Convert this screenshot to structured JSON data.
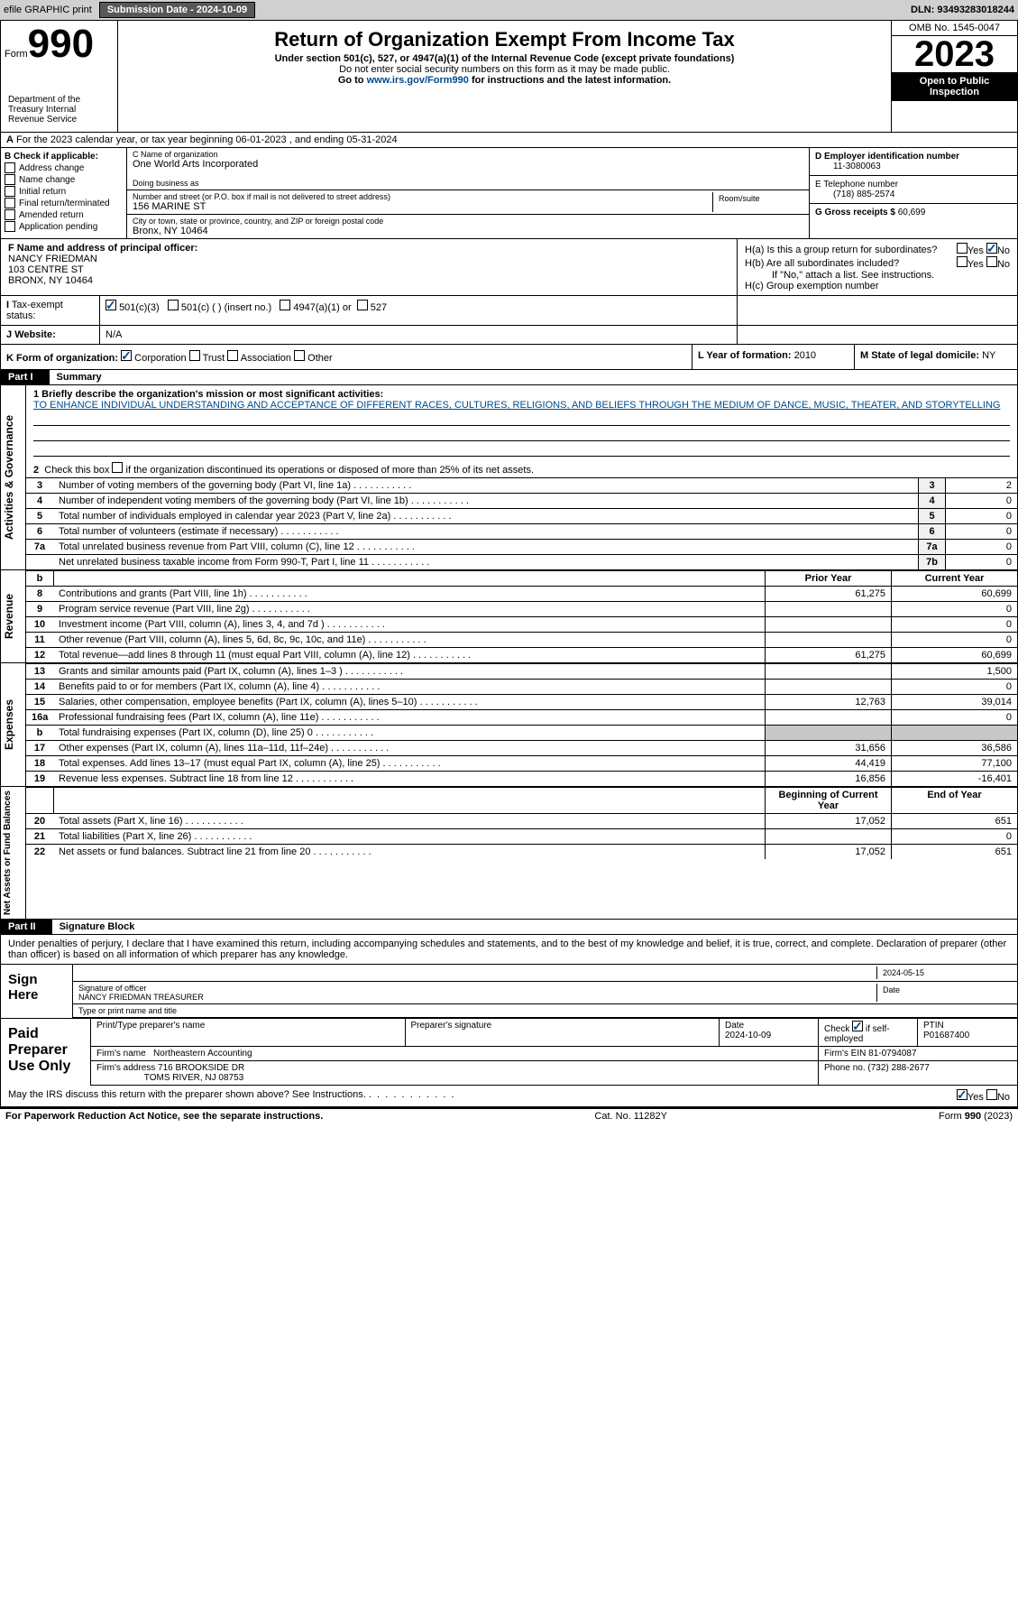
{
  "topbar": {
    "efile": "efile GRAPHIC print",
    "submission": "Submission Date - 2024-10-09",
    "dln": "DLN: 93493283018244"
  },
  "header": {
    "form_label": "Form",
    "form_num": "990",
    "dept": "Department of the Treasury Internal Revenue Service",
    "title": "Return of Organization Exempt From Income Tax",
    "sub": "Under section 501(c), 527, or 4947(a)(1) of the Internal Revenue Code (except private foundations)",
    "sub2": "Do not enter social security numbers on this form as it may be made public.",
    "sub3": "Go to www.irs.gov/Form990 for instructions and the latest information.",
    "omb": "OMB No. 1545-0047",
    "year": "2023",
    "inspect": "Open to Public Inspection"
  },
  "row_a": "For the 2023 calendar year, or tax year beginning 06-01-2023   , and ending 05-31-2024",
  "box_b": {
    "title": "B Check if applicable:",
    "opts": [
      "Address change",
      "Name change",
      "Initial return",
      "Final return/terminated",
      "Amended return",
      "Application pending"
    ]
  },
  "box_c": {
    "name_lab": "C Name of organization",
    "name": "One World Arts Incorporated",
    "dba_lab": "Doing business as",
    "street_lab": "Number and street (or P.O. box if mail is not delivered to street address)",
    "street": "156 MARINE ST",
    "room_lab": "Room/suite",
    "city_lab": "City or town, state or province, country, and ZIP or foreign postal code",
    "city": "Bronx, NY  10464"
  },
  "box_d": {
    "ein_lab": "D Employer identification number",
    "ein": "11-3080063",
    "tel_lab": "E Telephone number",
    "tel": "(718) 885-2574",
    "gross_lab": "G Gross receipts $",
    "gross": "60,699"
  },
  "box_f": {
    "lab": "F  Name and address of principal officer:",
    "name": "NANCY FRIEDMAN",
    "addr1": "103 CENTRE ST",
    "addr2": "BRONX, NY  10464"
  },
  "box_h": {
    "ha": "H(a)  Is this a group return for subordinates?",
    "hb": "H(b)  Are all subordinates included?",
    "hnote": "If \"No,\" attach a list. See instructions.",
    "hc": "H(c)  Group exemption number"
  },
  "box_i": {
    "lab": "Tax-exempt status:",
    "c3": "501(c)(3)",
    "c": "501(c) (  ) (insert no.)",
    "a1": "4947(a)(1) or",
    "527": "527"
  },
  "box_j": {
    "lab": "Website:",
    "val": "N/A"
  },
  "box_k": {
    "lab": "K Form of organization:",
    "corp": "Corporation",
    "trust": "Trust",
    "assoc": "Association",
    "other": "Other"
  },
  "box_l": {
    "lab": "L Year of formation:",
    "val": "2010"
  },
  "box_m": {
    "lab": "M State of legal domicile:",
    "val": "NY"
  },
  "part1": {
    "lab": "Part I",
    "title": "Summary"
  },
  "mission": {
    "lab": "1  Briefly describe the organization's mission or most significant activities:",
    "text": "TO ENHANCE INDIVIDUAL UNDERSTANDING AND ACCEPTANCE OF DIFFERENT RACES, CULTURES, RELIGIONS, AND BELIEFS THROUGH THE MEDIUM OF DANCE, MUSIC, THEATER, AND STORYTELLING"
  },
  "line2": "Check this box        if the organization discontinued its operations or disposed of more than 25% of its net assets.",
  "side_labels": {
    "gov": "Activities & Governance",
    "rev": "Revenue",
    "exp": "Expenses",
    "net": "Net Assets or Fund Balances"
  },
  "gov_rows": [
    {
      "n": "3",
      "t": "Number of voting members of the governing body (Part VI, line 1a)",
      "nr": "3",
      "v": "2"
    },
    {
      "n": "4",
      "t": "Number of independent voting members of the governing body (Part VI, line 1b)",
      "nr": "4",
      "v": "0"
    },
    {
      "n": "5",
      "t": "Total number of individuals employed in calendar year 2023 (Part V, line 2a)",
      "nr": "5",
      "v": "0"
    },
    {
      "n": "6",
      "t": "Total number of volunteers (estimate if necessary)",
      "nr": "6",
      "v": "0"
    },
    {
      "n": "7a",
      "t": "Total unrelated business revenue from Part VIII, column (C), line 12",
      "nr": "7a",
      "v": "0"
    },
    {
      "n": "",
      "t": "Net unrelated business taxable income from Form 990-T, Part I, line 11",
      "nr": "7b",
      "v": "0"
    }
  ],
  "rev_hdr": {
    "b": "b",
    "prior": "Prior Year",
    "curr": "Current Year"
  },
  "rev_rows": [
    {
      "n": "8",
      "t": "Contributions and grants (Part VIII, line 1h)",
      "c1": "61,275",
      "c2": "60,699"
    },
    {
      "n": "9",
      "t": "Program service revenue (Part VIII, line 2g)",
      "c1": "",
      "c2": "0"
    },
    {
      "n": "10",
      "t": "Investment income (Part VIII, column (A), lines 3, 4, and 7d )",
      "c1": "",
      "c2": "0"
    },
    {
      "n": "11",
      "t": "Other revenue (Part VIII, column (A), lines 5, 6d, 8c, 9c, 10c, and 11e)",
      "c1": "",
      "c2": "0"
    },
    {
      "n": "12",
      "t": "Total revenue—add lines 8 through 11 (must equal Part VIII, column (A), line 12)",
      "c1": "61,275",
      "c2": "60,699"
    }
  ],
  "exp_rows": [
    {
      "n": "13",
      "t": "Grants and similar amounts paid (Part IX, column (A), lines 1–3 )",
      "c1": "",
      "c2": "1,500"
    },
    {
      "n": "14",
      "t": "Benefits paid to or for members (Part IX, column (A), line 4)",
      "c1": "",
      "c2": "0"
    },
    {
      "n": "15",
      "t": "Salaries, other compensation, employee benefits (Part IX, column (A), lines 5–10)",
      "c1": "12,763",
      "c2": "39,014"
    },
    {
      "n": "16a",
      "t": "Professional fundraising fees (Part IX, column (A), line 11e)",
      "c1": "",
      "c2": "0"
    },
    {
      "n": "b",
      "t": "Total fundraising expenses (Part IX, column (D), line 25) 0",
      "c1": "grey",
      "c2": "grey"
    },
    {
      "n": "17",
      "t": "Other expenses (Part IX, column (A), lines 11a–11d, 11f–24e)",
      "c1": "31,656",
      "c2": "36,586"
    },
    {
      "n": "18",
      "t": "Total expenses. Add lines 13–17 (must equal Part IX, column (A), line 25)",
      "c1": "44,419",
      "c2": "77,100"
    },
    {
      "n": "19",
      "t": "Revenue less expenses. Subtract line 18 from line 12",
      "c1": "16,856",
      "c2": "-16,401"
    }
  ],
  "net_hdr": {
    "prior": "Beginning of Current Year",
    "curr": "End of Year"
  },
  "net_rows": [
    {
      "n": "20",
      "t": "Total assets (Part X, line 16)",
      "c1": "17,052",
      "c2": "651"
    },
    {
      "n": "21",
      "t": "Total liabilities (Part X, line 26)",
      "c1": "",
      "c2": "0"
    },
    {
      "n": "22",
      "t": "Net assets or fund balances. Subtract line 21 from line 20",
      "c1": "17,052",
      "c2": "651"
    }
  ],
  "part2": {
    "lab": "Part II",
    "title": "Signature Block"
  },
  "sig": {
    "text": "Under penalties of perjury, I declare that I have examined this return, including accompanying schedules and statements, and to the best of my knowledge and belief, it is true, correct, and complete. Declaration of preparer (other than officer) is based on all information of which preparer has any knowledge.",
    "sign_here": "Sign Here",
    "date": "2024-05-15",
    "sig_lab": "Signature of officer",
    "date_lab": "Date",
    "name": "NANCY FRIEDMAN  TREASURER",
    "name_lab": "Type or print name and title"
  },
  "paid": {
    "lab": "Paid Preparer Use Only",
    "p_name_lab": "Print/Type preparer's name",
    "p_sig_lab": "Preparer's signature",
    "p_date_lab": "Date",
    "p_date": "2024-10-09",
    "check_lab": "Check        if self-employed",
    "ptin_lab": "PTIN",
    "ptin": "P01687400",
    "firm_name_lab": "Firm's name",
    "firm_name": "Northeastern Accounting",
    "firm_ein_lab": "Firm's EIN",
    "firm_ein": "81-0794087",
    "firm_addr_lab": "Firm's address",
    "firm_addr1": "716 BROOKSIDE DR",
    "firm_addr2": "TOMS RIVER, NJ  08753",
    "phone_lab": "Phone no.",
    "phone": "(732) 288-2677"
  },
  "discuss": "May the IRS discuss this return with the preparer shown above? See Instructions.",
  "footer": {
    "pra": "For Paperwork Reduction Act Notice, see the separate instructions.",
    "cat": "Cat. No. 11282Y",
    "form": "Form 990 (2023)"
  }
}
